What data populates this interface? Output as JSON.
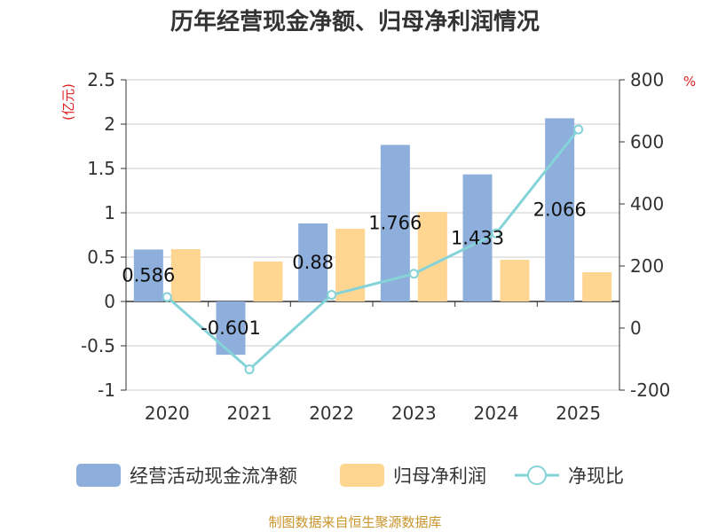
{
  "chart_data": {
    "type": "bar+line",
    "title": "历年经营现金净额、归母净利润情况",
    "categories": [
      "2020",
      "2021",
      "2022",
      "2023",
      "2024",
      "2025"
    ],
    "series": [
      {
        "name": "经营活动现金流净额",
        "type": "bar",
        "axis": "left",
        "color": "#8eaedb",
        "values": [
          0.586,
          -0.601,
          0.88,
          1.766,
          1.433,
          2.066
        ],
        "labels": [
          "0.586",
          "-0.601",
          "0.88",
          "1.766",
          "1.433",
          "2.066"
        ]
      },
      {
        "name": "归母净利润",
        "type": "bar",
        "axis": "left",
        "color": "#ffd691",
        "values": [
          0.59,
          0.45,
          0.82,
          1.01,
          0.47,
          0.33
        ]
      },
      {
        "name": "净现比",
        "type": "line",
        "axis": "right",
        "color": "#84d3d9",
        "values": [
          100,
          -133,
          107,
          175,
          305,
          640
        ]
      }
    ],
    "y_left": {
      "unit": "(亿元)",
      "min": -1,
      "max": 2.5,
      "ticks": [
        -1,
        -0.5,
        0,
        0.5,
        1,
        1.5,
        2,
        2.5
      ],
      "tick_labels": [
        "-1",
        "-0.5",
        "0",
        "0.5",
        "1",
        "1.5",
        "2",
        "2.5"
      ]
    },
    "y_right": {
      "unit": "%",
      "min": -200,
      "max": 800,
      "ticks": [
        -200,
        0,
        200,
        400,
        600,
        800
      ],
      "tick_labels": [
        "-200",
        "0",
        "200",
        "400",
        "600",
        "800"
      ]
    },
    "legend_position": "bottom",
    "source": "制图数据来自恒生聚源数据库"
  }
}
